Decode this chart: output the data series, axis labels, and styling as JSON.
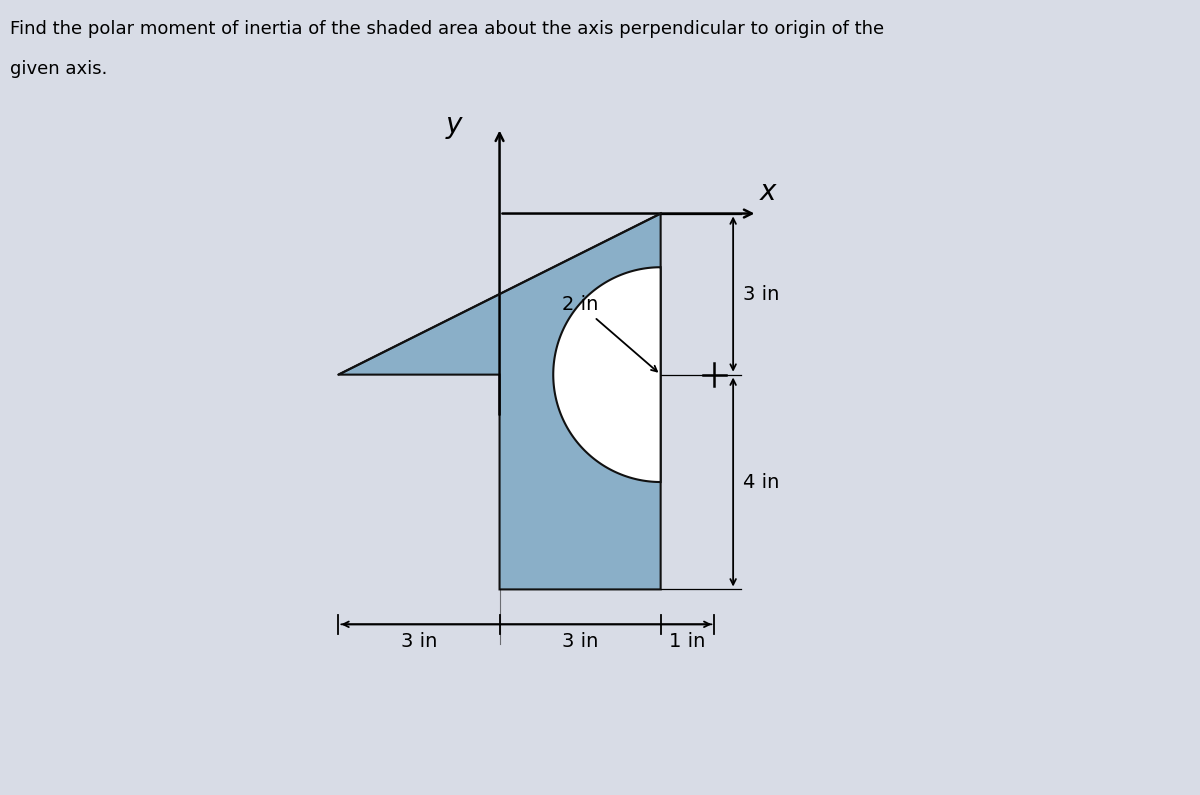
{
  "title_line1": "Find the polar moment of inertia of the shaded area about the axis perpendicular to origin of the",
  "title_line2": "given axis.",
  "fig_bg": "#d8dce6",
  "shape_fill": "#8aafc8",
  "shape_edge": "#111111",
  "label_x": "x",
  "label_y": "y",
  "dim_bot_left": "3 in",
  "dim_bot_mid": "3 in",
  "dim_bot_right": "1 in",
  "dim_right_top": "3 in",
  "dim_right_bot": "4 in",
  "dim_radius": "2 in",
  "xlim": [
    -1.2,
    11.5
  ],
  "ylim": [
    -2.2,
    9.2
  ]
}
